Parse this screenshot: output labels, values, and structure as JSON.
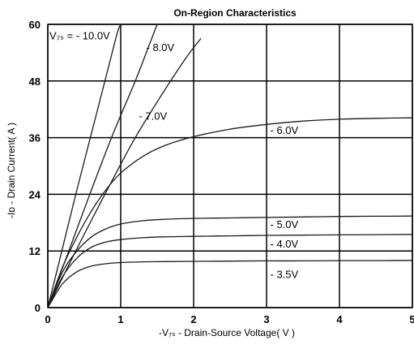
{
  "chart_data": {
    "type": "line",
    "title": "On-Region Characteristics",
    "xlabel": "-V₇ₛ - Drain-Source Voltage( V )",
    "ylabel": "-Iᴅ - Drain Current( A )",
    "xlim": [
      0,
      5
    ],
    "ylim": [
      0,
      60
    ],
    "xticks": [
      "0",
      "1",
      "2",
      "3",
      "4",
      "5"
    ],
    "yticks": [
      "0",
      "12",
      "24",
      "36",
      "48",
      "60"
    ],
    "grid": true,
    "legend": "inline",
    "series": [
      {
        "name": "V₇ₛ = - 10.0V",
        "x": [
          0,
          0.2,
          0.4,
          0.6,
          0.8,
          0.95,
          1.0
        ],
        "y": [
          0,
          12.5,
          25,
          37,
          49,
          58,
          60
        ]
      },
      {
        "name": "- 8.0V",
        "x": [
          0,
          0.3,
          0.6,
          0.9,
          1.2,
          1.4,
          1.5
        ],
        "y": [
          0,
          12.5,
          25,
          37,
          48,
          56,
          60
        ]
      },
      {
        "name": "- 7.0V",
        "x": [
          0,
          0.4,
          0.8,
          1.2,
          1.6,
          1.9,
          2.1
        ],
        "y": [
          0,
          12.5,
          24.5,
          36,
          46,
          53,
          57
        ]
      },
      {
        "name": "- 6.0V",
        "x": [
          0,
          0.2,
          0.4,
          0.6,
          0.8,
          1.0,
          1.3,
          1.6,
          2.0,
          2.5,
          3.0,
          3.5,
          4.0,
          4.5,
          5.0
        ],
        "y": [
          0,
          8.5,
          15,
          20.5,
          25,
          28.5,
          32,
          34.3,
          36.2,
          37.8,
          38.8,
          39.5,
          39.9,
          40.1,
          40.2
        ]
      },
      {
        "name": "- 5.0V",
        "x": [
          0,
          0.2,
          0.4,
          0.6,
          0.8,
          1.0,
          1.3,
          1.6,
          2.0,
          2.5,
          3.0,
          3.5,
          4.0,
          4.5,
          5.0
        ],
        "y": [
          0,
          7.5,
          12,
          15,
          16.7,
          17.7,
          18.4,
          18.7,
          18.9,
          19.0,
          19.1,
          19.2,
          19.3,
          19.35,
          19.4
        ]
      },
      {
        "name": "- 4.0V",
        "x": [
          0,
          0.2,
          0.4,
          0.6,
          0.8,
          1.0,
          1.3,
          1.6,
          2.0,
          2.5,
          3.0,
          3.5,
          4.0,
          4.5,
          5.0
        ],
        "y": [
          0,
          6.5,
          10.5,
          12.8,
          13.9,
          14.4,
          14.8,
          15.0,
          15.1,
          15.2,
          15.3,
          15.35,
          15.4,
          15.45,
          15.5
        ]
      },
      {
        "name": "- 3.5V",
        "x": [
          0,
          0.2,
          0.4,
          0.6,
          0.8,
          1.0,
          1.3,
          1.6,
          2.0,
          2.5,
          3.0,
          3.5,
          4.0,
          4.5,
          5.0
        ],
        "y": [
          0,
          5,
          7.6,
          8.8,
          9.3,
          9.55,
          9.7,
          9.75,
          9.8,
          9.85,
          9.9,
          9.9,
          9.95,
          9.95,
          10.0
        ]
      }
    ],
    "series_label_positions": [
      {
        "x": 0.0,
        "y": 57.5
      },
      {
        "x": 1.35,
        "y": 55.0
      },
      {
        "x": 1.25,
        "y": 40.5
      },
      {
        "x": 3.05,
        "y": 37.5
      },
      {
        "x": 3.05,
        "y": 17.5
      },
      {
        "x": 3.05,
        "y": 13.4
      },
      {
        "x": 3.05,
        "y": 7.0
      }
    ]
  }
}
